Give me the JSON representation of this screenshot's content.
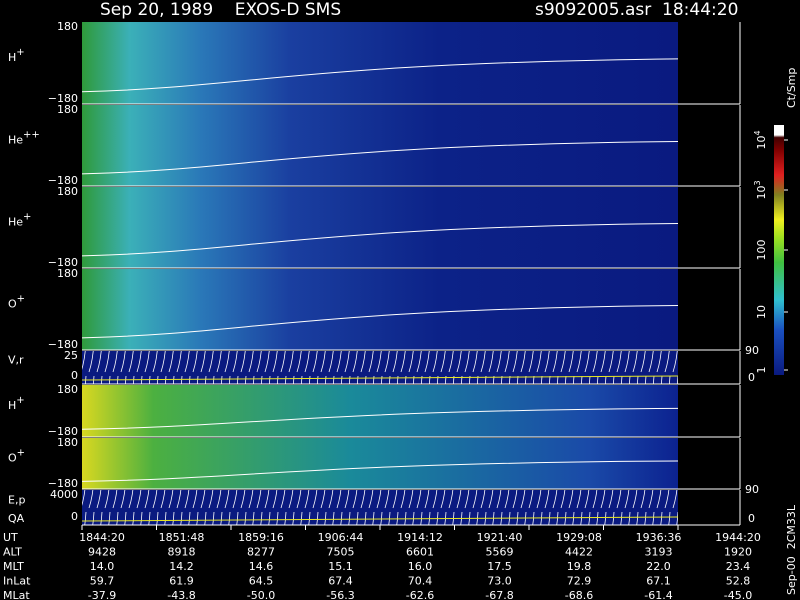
{
  "header": {
    "title": "Sep 20, 1989    EXOS-D SMS",
    "file": "s9092005.asr  18:44:20"
  },
  "panels": [
    {
      "species": "H",
      "charge": "+",
      "top": "180",
      "bottom": "−180"
    },
    {
      "species": "He",
      "charge": "++",
      "top": "180",
      "bottom": "−180"
    },
    {
      "species": "He",
      "charge": "+",
      "top": "180",
      "bottom": "−180"
    },
    {
      "species": "O",
      "charge": "+",
      "top": "180",
      "bottom": "−180"
    },
    {
      "species": "V,r",
      "top": "25",
      "bottom": "0",
      "right_top": "90",
      "right_bottom": "0"
    },
    {
      "species": "H",
      "charge": "+",
      "top": "180",
      "bottom": "−180"
    },
    {
      "species": "O",
      "charge": "+",
      "top": "180",
      "bottom": "−180"
    },
    {
      "species": "E,p",
      "extra": "QA",
      "top": "4000",
      "bottom": "0",
      "right_top": "90",
      "right_bottom": "0"
    }
  ],
  "colorbar": {
    "unit": "Ct/Smp",
    "ticks": [
      {
        "base": "10",
        "exp": "4"
      },
      {
        "base": "10",
        "exp": "3"
      },
      "100",
      "10",
      "1"
    ]
  },
  "side_note": "Sep-00  2CM33L",
  "footer": {
    "rows": [
      {
        "label": "UT",
        "values": [
          "1844:20",
          "1851:48",
          "1859:16",
          "1906:44",
          "1914:12",
          "1921:40",
          "1929:08",
          "1936:36",
          "1944:20"
        ]
      },
      {
        "label": "ALT",
        "values": [
          "9428",
          "8918",
          "8277",
          "7505",
          "6601",
          "5569",
          "4422",
          "3193",
          "1920"
        ]
      },
      {
        "label": "MLT",
        "values": [
          "14.0",
          "14.2",
          "14.6",
          "15.1",
          "16.0",
          "17.5",
          "19.8",
          "22.0",
          "23.4"
        ]
      },
      {
        "label": "InLat",
        "values": [
          "59.7",
          "61.9",
          "64.5",
          "67.4",
          "70.4",
          "73.0",
          "72.9",
          "67.1",
          "52.8"
        ]
      },
      {
        "label": "MLat",
        "values": [
          "-37.9",
          "-43.8",
          "-50.0",
          "-56.3",
          "-62.6",
          "-67.8",
          "-68.6",
          "-61.4",
          "-45.0"
        ]
      }
    ]
  }
}
